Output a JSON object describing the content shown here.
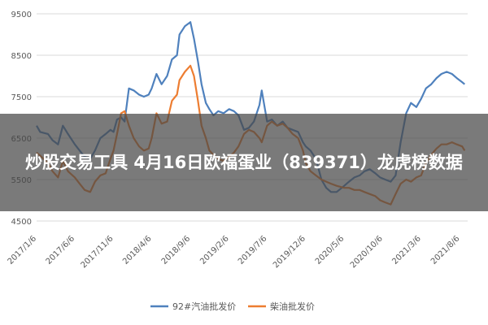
{
  "overlay": {
    "title": "炒股交易工具 4月16日欧福蛋业（839371）龙虎榜数据"
  },
  "chart_data": {
    "type": "line",
    "ylim": [
      4500,
      9500
    ],
    "yticks": [
      4500,
      5500,
      6500,
      7500,
      8500,
      9500
    ],
    "grid": true,
    "legend_position": "bottom",
    "xticks": [
      {
        "date": "2017-01-06",
        "label": "2017/1/6"
      },
      {
        "date": "2017-06-06",
        "label": "2017/6/6"
      },
      {
        "date": "2017-11-06",
        "label": "2017/11/6"
      },
      {
        "date": "2018-04-06",
        "label": "2018/4/6"
      },
      {
        "date": "2018-09-06",
        "label": "2018/9/6"
      },
      {
        "date": "2019-02-06",
        "label": "2019/2/6"
      },
      {
        "date": "2019-07-06",
        "label": "2019/7/6"
      },
      {
        "date": "2019-12-06",
        "label": "2019/12/6"
      },
      {
        "date": "2020-05-06",
        "label": "2020/5/6"
      },
      {
        "date": "2020-10-06",
        "label": "2020/10/6"
      },
      {
        "date": "2021-03-06",
        "label": "2021/3/6"
      },
      {
        "date": "2021-08-06",
        "label": "2021/8/6"
      }
    ],
    "xlim": [
      "2017-01-06",
      "2021-09-06"
    ],
    "series": [
      {
        "name": "92#汽油批发价",
        "color": "#4f81bd",
        "points": [
          [
            "2017-01-06",
            6800
          ],
          [
            "2017-01-20",
            6650
          ],
          [
            "2017-02-20",
            6600
          ],
          [
            "2017-03-10",
            6450
          ],
          [
            "2017-04-01",
            6350
          ],
          [
            "2017-04-20",
            6800
          ],
          [
            "2017-05-10",
            6600
          ],
          [
            "2017-06-06",
            6350
          ],
          [
            "2017-06-25",
            6200
          ],
          [
            "2017-07-15",
            6050
          ],
          [
            "2017-08-06",
            6000
          ],
          [
            "2017-08-25",
            6200
          ],
          [
            "2017-09-15",
            6500
          ],
          [
            "2017-10-06",
            6600
          ],
          [
            "2017-10-25",
            6700
          ],
          [
            "2017-11-06",
            6650
          ],
          [
            "2017-11-20",
            6950
          ],
          [
            "2017-12-06",
            7000
          ],
          [
            "2017-12-20",
            6900
          ],
          [
            "2018-01-06",
            7700
          ],
          [
            "2018-01-25",
            7650
          ],
          [
            "2018-02-15",
            7550
          ],
          [
            "2018-03-06",
            7500
          ],
          [
            "2018-03-25",
            7550
          ],
          [
            "2018-04-06",
            7700
          ],
          [
            "2018-04-25",
            8050
          ],
          [
            "2018-05-15",
            7800
          ],
          [
            "2018-06-06",
            8000
          ],
          [
            "2018-06-25",
            8400
          ],
          [
            "2018-07-15",
            8500
          ],
          [
            "2018-07-25",
            9000
          ],
          [
            "2018-08-15",
            9200
          ],
          [
            "2018-09-06",
            9300
          ],
          [
            "2018-09-20",
            8900
          ],
          [
            "2018-10-06",
            8350
          ],
          [
            "2018-10-20",
            7800
          ],
          [
            "2018-11-06",
            7350
          ],
          [
            "2018-11-20",
            7200
          ],
          [
            "2018-12-06",
            7050
          ],
          [
            "2018-12-25",
            7150
          ],
          [
            "2019-01-15",
            7100
          ],
          [
            "2019-02-06",
            7200
          ],
          [
            "2019-02-25",
            7150
          ],
          [
            "2019-03-15",
            7050
          ],
          [
            "2019-04-06",
            6700
          ],
          [
            "2019-04-25",
            6750
          ],
          [
            "2019-05-15",
            6900
          ],
          [
            "2019-06-06",
            7300
          ],
          [
            "2019-06-15",
            7650
          ],
          [
            "2019-07-06",
            6900
          ],
          [
            "2019-07-25",
            6950
          ],
          [
            "2019-08-15",
            6800
          ],
          [
            "2019-09-06",
            6900
          ],
          [
            "2019-09-25",
            6750
          ],
          [
            "2019-10-15",
            6700
          ],
          [
            "2019-11-06",
            6650
          ],
          [
            "2019-11-25",
            6400
          ],
          [
            "2019-12-06",
            6300
          ],
          [
            "2019-12-25",
            6200
          ],
          [
            "2020-01-15",
            6000
          ],
          [
            "2020-02-06",
            5500
          ],
          [
            "2020-02-25",
            5300
          ],
          [
            "2020-03-15",
            5200
          ],
          [
            "2020-04-06",
            5200
          ],
          [
            "2020-05-06",
            5350
          ],
          [
            "2020-05-25",
            5450
          ],
          [
            "2020-06-15",
            5550
          ],
          [
            "2020-07-06",
            5600
          ],
          [
            "2020-07-25",
            5700
          ],
          [
            "2020-08-15",
            5750
          ],
          [
            "2020-09-06",
            5650
          ],
          [
            "2020-09-25",
            5550
          ],
          [
            "2020-10-15",
            5500
          ],
          [
            "2020-11-06",
            5450
          ],
          [
            "2020-11-25",
            5600
          ],
          [
            "2020-12-15",
            6400
          ],
          [
            "2021-01-06",
            7100
          ],
          [
            "2021-01-25",
            7350
          ],
          [
            "2021-02-15",
            7250
          ],
          [
            "2021-03-06",
            7450
          ],
          [
            "2021-03-25",
            7700
          ],
          [
            "2021-04-15",
            7800
          ],
          [
            "2021-05-06",
            7950
          ],
          [
            "2021-05-25",
            8050
          ],
          [
            "2021-06-15",
            8100
          ],
          [
            "2021-07-06",
            8050
          ],
          [
            "2021-07-25",
            7950
          ],
          [
            "2021-08-15",
            7850
          ],
          [
            "2021-08-25",
            7800
          ]
        ]
      },
      {
        "name": "柴油批发价",
        "color": "#ed7d31",
        "points": [
          [
            "2017-01-06",
            6150
          ],
          [
            "2017-01-25",
            6050
          ],
          [
            "2017-02-20",
            5900
          ],
          [
            "2017-03-10",
            5700
          ],
          [
            "2017-04-01",
            5550
          ],
          [
            "2017-04-20",
            5950
          ],
          [
            "2017-05-10",
            5700
          ],
          [
            "2017-06-06",
            5550
          ],
          [
            "2017-06-25",
            5400
          ],
          [
            "2017-07-15",
            5250
          ],
          [
            "2017-08-06",
            5200
          ],
          [
            "2017-08-25",
            5450
          ],
          [
            "2017-09-15",
            5600
          ],
          [
            "2017-10-06",
            5650
          ],
          [
            "2017-10-25",
            6000
          ],
          [
            "2017-11-06",
            6200
          ],
          [
            "2017-11-20",
            6600
          ],
          [
            "2017-12-06",
            7100
          ],
          [
            "2017-12-20",
            7150
          ],
          [
            "2018-01-06",
            6800
          ],
          [
            "2018-01-25",
            6500
          ],
          [
            "2018-02-15",
            6300
          ],
          [
            "2018-03-06",
            6200
          ],
          [
            "2018-03-25",
            6250
          ],
          [
            "2018-04-06",
            6500
          ],
          [
            "2018-04-25",
            7100
          ],
          [
            "2018-05-15",
            6850
          ],
          [
            "2018-06-06",
            6900
          ],
          [
            "2018-06-25",
            7400
          ],
          [
            "2018-07-15",
            7550
          ],
          [
            "2018-07-25",
            7900
          ],
          [
            "2018-08-15",
            8100
          ],
          [
            "2018-09-06",
            8250
          ],
          [
            "2018-09-20",
            8000
          ],
          [
            "2018-10-06",
            7400
          ],
          [
            "2018-10-20",
            6800
          ],
          [
            "2018-11-06",
            6500
          ],
          [
            "2018-11-20",
            6200
          ],
          [
            "2018-12-06",
            6100
          ],
          [
            "2018-12-25",
            6000
          ],
          [
            "2019-01-15",
            5950
          ],
          [
            "2019-02-06",
            6050
          ],
          [
            "2019-02-25",
            6150
          ],
          [
            "2019-03-15",
            6300
          ],
          [
            "2019-04-06",
            6600
          ],
          [
            "2019-04-25",
            6700
          ],
          [
            "2019-05-15",
            6650
          ],
          [
            "2019-06-06",
            6500
          ],
          [
            "2019-06-15",
            6400
          ],
          [
            "2019-07-06",
            6800
          ],
          [
            "2019-07-25",
            6900
          ],
          [
            "2019-08-15",
            6800
          ],
          [
            "2019-09-06",
            6850
          ],
          [
            "2019-09-25",
            6750
          ],
          [
            "2019-10-15",
            6600
          ],
          [
            "2019-11-06",
            6500
          ],
          [
            "2019-11-25",
            6200
          ],
          [
            "2019-12-06",
            5900
          ],
          [
            "2019-12-25",
            5700
          ],
          [
            "2020-01-15",
            5600
          ],
          [
            "2020-02-06",
            5500
          ],
          [
            "2020-02-25",
            5450
          ],
          [
            "2020-03-15",
            5400
          ],
          [
            "2020-04-06",
            5350
          ],
          [
            "2020-05-06",
            5300
          ],
          [
            "2020-05-25",
            5300
          ],
          [
            "2020-06-15",
            5250
          ],
          [
            "2020-07-06",
            5250
          ],
          [
            "2020-07-25",
            5200
          ],
          [
            "2020-08-15",
            5150
          ],
          [
            "2020-09-06",
            5100
          ],
          [
            "2020-09-25",
            5000
          ],
          [
            "2020-10-15",
            4950
          ],
          [
            "2020-11-06",
            4900
          ],
          [
            "2020-11-25",
            5150
          ],
          [
            "2020-12-15",
            5400
          ],
          [
            "2021-01-06",
            5500
          ],
          [
            "2021-01-25",
            5450
          ],
          [
            "2021-02-15",
            5550
          ],
          [
            "2021-03-06",
            5600
          ],
          [
            "2021-03-25",
            5900
          ],
          [
            "2021-04-15",
            6100
          ],
          [
            "2021-05-06",
            6250
          ],
          [
            "2021-05-25",
            6350
          ],
          [
            "2021-06-15",
            6350
          ],
          [
            "2021-07-06",
            6400
          ],
          [
            "2021-07-25",
            6350
          ],
          [
            "2021-08-15",
            6300
          ],
          [
            "2021-08-25",
            6200
          ]
        ]
      }
    ]
  }
}
